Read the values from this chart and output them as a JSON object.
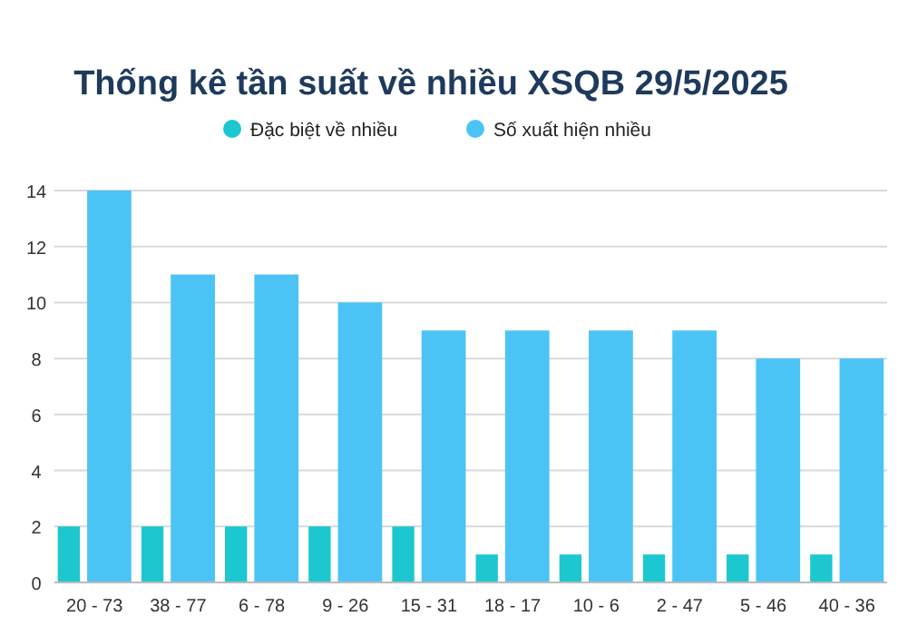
{
  "chart_data": {
    "type": "bar",
    "title": "Thống kê tần suất về nhiều XSQB 29/5/2025",
    "categories": [
      "20 - 73",
      "38 - 77",
      "6 - 78",
      "9 - 26",
      "15 - 31",
      "18 - 17",
      "10 - 6",
      "2 - 47",
      "5 - 46",
      "40 - 36"
    ],
    "series": [
      {
        "name": "Đặc biệt về nhiều",
        "color": "#1cc7d0",
        "values": [
          2,
          2,
          2,
          2,
          2,
          1,
          1,
          1,
          1,
          1
        ]
      },
      {
        "name": "Số xuất hiện nhiều",
        "color": "#4cc3f5",
        "values": [
          14,
          11,
          11,
          10,
          9,
          9,
          9,
          9,
          8,
          8
        ]
      }
    ],
    "ylim": [
      0,
      14
    ],
    "yticks": [
      0,
      2,
      4,
      6,
      8,
      10,
      12,
      14
    ],
    "grid": "y",
    "legend": "top"
  }
}
